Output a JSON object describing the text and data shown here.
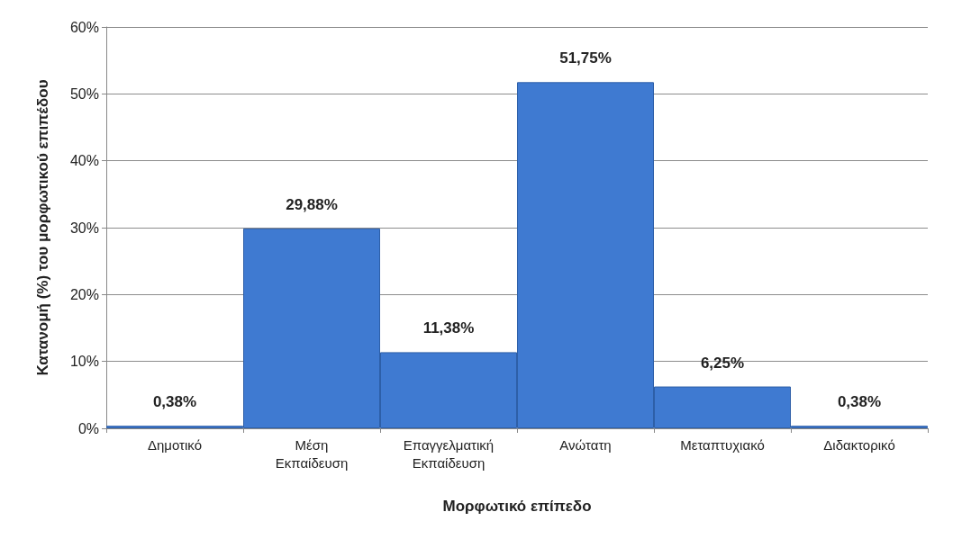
{
  "chart_data": {
    "type": "bar",
    "xlabel": "Μορφωτικό επίπεδο",
    "ylabel": "Κατανομή (%) του μορφωτικού επιπέδου",
    "categories": [
      "Δημοτικό",
      "Μέση Εκπαίδευση",
      "Επαγγελματική Εκπαίδευση",
      "Ανώτατη",
      "Μεταπτυχιακό",
      "Διδακτορικό"
    ],
    "values": [
      0.38,
      29.88,
      11.38,
      51.75,
      6.25,
      0.38
    ],
    "value_labels": [
      "0,38%",
      "29,88%",
      "11,38%",
      "51,75%",
      "6,25%",
      "0,38%"
    ],
    "color": "#3f7ad1",
    "ylim": [
      0,
      60
    ],
    "yticks": [
      {
        "value": 0,
        "label": "0%"
      },
      {
        "value": 10,
        "label": "10%"
      },
      {
        "value": 20,
        "label": "20%"
      },
      {
        "value": 30,
        "label": "30%"
      },
      {
        "value": 40,
        "label": "40%"
      },
      {
        "value": 50,
        "label": "50%"
      },
      {
        "value": 60,
        "label": "60%"
      }
    ],
    "grid": "y"
  }
}
